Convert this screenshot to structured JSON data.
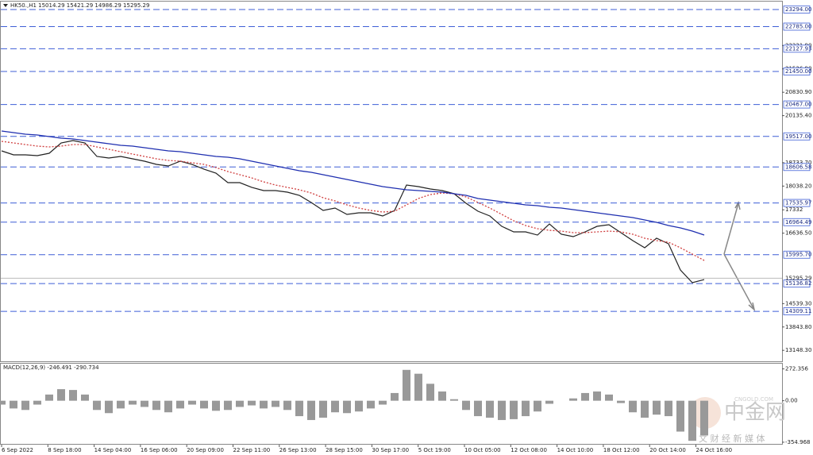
{
  "chart_data": [
    {
      "type": "line",
      "title": "HK50.,H1  15014.29 15421.29 14986.29 15295.29",
      "ylim": [
        12822,
        23530
      ],
      "yticks": [
        {
          "value": 22221.9,
          "label": "22221.90"
        },
        {
          "value": 21526.9,
          "label": "21526.90"
        },
        {
          "value": 20830.9,
          "label": "20830.90"
        },
        {
          "value": 20135.4,
          "label": "20135.40"
        },
        {
          "value": 18733.7,
          "label": "18733.70"
        },
        {
          "value": 18038.2,
          "label": "18038.20"
        },
        17332,
        {
          "value": 16636.5,
          "label": "16636.50"
        },
        {
          "value": 14539.3,
          "label": "14539.30"
        },
        {
          "value": 13843.8,
          "label": "13843.80"
        },
        {
          "value": 13148.3,
          "label": "13148.30"
        }
      ],
      "levels": [
        {
          "value": 23294,
          "label": "23294.00"
        },
        {
          "value": 22785,
          "label": "22785.00"
        },
        {
          "value": 22127.93,
          "label": "22127.93"
        },
        {
          "value": 21450,
          "label": "21450.00"
        },
        {
          "value": 20467,
          "label": "20467.00"
        },
        {
          "value": 19517,
          "label": "19517.00"
        },
        {
          "value": 18606.58,
          "label": "18606.58"
        },
        17535.97,
        16964.49,
        {
          "value": 15995.7,
          "label": "15995.70"
        },
        15136.82,
        14309.11
      ],
      "last_price": 15295.29,
      "level_color": "#3f5fd6",
      "xticks": [
        "6 Sep 2022",
        "8 Sep 18:00",
        "14 Sep 04:00",
        "16 Sep 06:00",
        "20 Sep 09:00",
        "22 Sep 11:00",
        "26 Sep 13:00",
        "28 Sep 15:00",
        "30 Sep 17:00",
        "5 Oct 19:00",
        "10 Oct 05:00",
        "12 Oct 08:00",
        "14 Oct 10:00",
        "18 Oct 12:00",
        "20 Oct 14:00",
        "24 Oct 16:00"
      ],
      "series": [
        {
          "color": "#222222",
          "values": [
            19086,
            18968,
            18968,
            18944,
            19015,
            19322,
            19393,
            19322,
            18921,
            18873,
            18921,
            18850,
            18779,
            18684,
            18637,
            18779,
            18684,
            18542,
            18424,
            18140,
            18140,
            17999,
            17904,
            17904,
            17857,
            17762,
            17550,
            17313,
            17384,
            17195,
            17242,
            17242,
            17148,
            17313,
            18070,
            18022,
            17951,
            17904,
            17810,
            17526,
            17289,
            17148,
            16840,
            16675,
            16675,
            16580,
            16911,
            16604,
            16533,
            16675,
            16840,
            16888,
            16651,
            16415,
            16202,
            16486,
            16320,
            15540,
            15162,
            15256
          ]
        },
        {
          "color": "#d04040",
          "dashed": true,
          "values": [
            19370,
            19322,
            19275,
            19228,
            19204,
            19228,
            19275,
            19275,
            19204,
            19133,
            19062,
            18991,
            18921,
            18850,
            18802,
            18779,
            18731,
            18684,
            18590,
            18471,
            18377,
            18282,
            18164,
            18070,
            17999,
            17928,
            17833,
            17691,
            17597,
            17479,
            17384,
            17313,
            17266,
            17289,
            17479,
            17668,
            17786,
            17833,
            17810,
            17715,
            17550,
            17384,
            17195,
            17006,
            16864,
            16769,
            16722,
            16698,
            16651,
            16651,
            16675,
            16698,
            16675,
            16604,
            16486,
            16415,
            16367,
            16202,
            16013,
            15824
          ]
        },
        {
          "color": "#1f2fb0",
          "values": [
            19677,
            19630,
            19582,
            19559,
            19512,
            19464,
            19441,
            19393,
            19346,
            19299,
            19251,
            19228,
            19180,
            19133,
            19086,
            19062,
            19015,
            18968,
            18921,
            18897,
            18850,
            18779,
            18708,
            18637,
            18566,
            18495,
            18448,
            18377,
            18306,
            18235,
            18164,
            18093,
            18022,
            17975,
            17927,
            17904,
            17880,
            17857,
            17810,
            17762,
            17668,
            17621,
            17573,
            17526,
            17479,
            17455,
            17408,
            17384,
            17337,
            17289,
            17242,
            17195,
            17148,
            17100,
            17029,
            16958,
            16864,
            16793,
            16698,
            16580
          ]
        }
      ]
    },
    {
      "type": "bar",
      "title": "MACD(12,26,9) -246.491 -290.734",
      "ylim": [
        -376,
        317
      ],
      "yticks": [
        272.356,
        {
          "value": 0,
          "label": "0.00"
        },
        -354.968
      ],
      "color": "#999999",
      "values": [
        -33,
        -66,
        -79,
        -33,
        53,
        99,
        92,
        53,
        -79,
        -106,
        -66,
        -33,
        -53,
        -79,
        -99,
        -66,
        -33,
        -66,
        -86,
        -79,
        -53,
        -40,
        -66,
        -53,
        -79,
        -132,
        -165,
        -145,
        -99,
        -106,
        -92,
        -66,
        -33,
        66,
        264,
        231,
        145,
        79,
        13,
        -79,
        -132,
        -145,
        -165,
        -158,
        -132,
        -92,
        -26,
        0,
        20,
        66,
        79,
        53,
        -20,
        -99,
        -145,
        -119,
        -132,
        -264,
        -343,
        -297
      ]
    }
  ],
  "watermark": {
    "site": "CNGOLD.COM",
    "brand": "中金网",
    "slogan": "文 财 经 新 媒 体"
  }
}
